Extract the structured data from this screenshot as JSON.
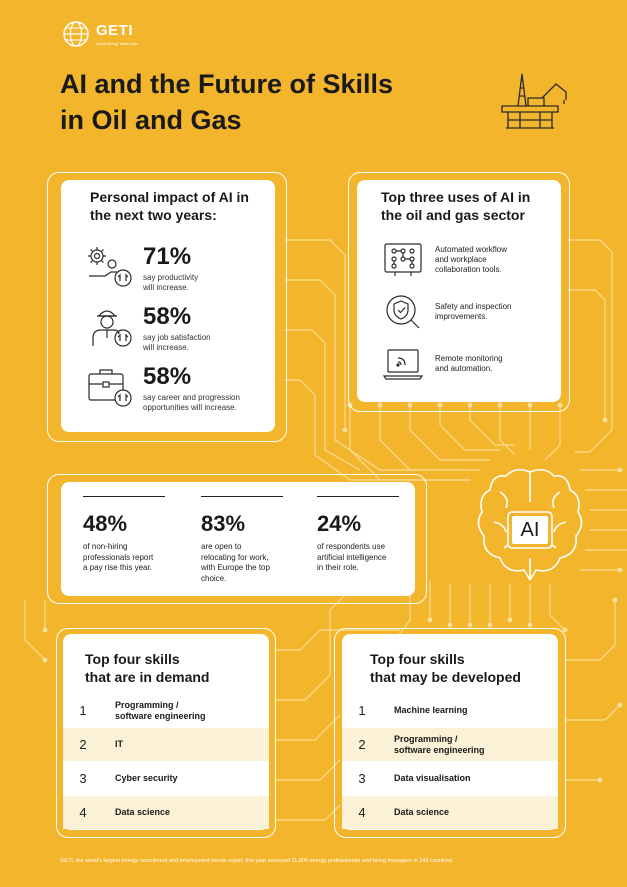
{
  "brand": {
    "logo_text": "GETI",
    "logo_tagline": "Global Energy Talent Index"
  },
  "title": {
    "line1": "AI and the Future of Skills",
    "line2": "in Oil and Gas"
  },
  "personal_impact": {
    "heading_line1": "Personal impact of AI in",
    "heading_line2": "the next two years:",
    "items": [
      {
        "icon": "gear-hand-icon",
        "percent": "71%",
        "desc_line1": "say productivity",
        "desc_line2": "will increase."
      },
      {
        "icon": "worker-icon",
        "percent": "58%",
        "desc_line1": "say job satisfaction",
        "desc_line2": "will increase."
      },
      {
        "icon": "briefcase-icon",
        "percent": "58%",
        "desc_line1": "say career and progression",
        "desc_line2": "opportunities will increase."
      }
    ]
  },
  "top_uses": {
    "heading_line1": "Top three uses of AI in",
    "heading_line2": "the oil and gas sector",
    "items": [
      {
        "icon": "workflow-board-icon",
        "line1": "Automated workflow",
        "line2": "and workplace",
        "line3": "collaboration tools."
      },
      {
        "icon": "shield-check-icon",
        "line1": "Safety and inspection",
        "line2": "improvements.",
        "line3": ""
      },
      {
        "icon": "laptop-signal-icon",
        "line1": "Remote monitoring",
        "line2": "and automation.",
        "line3": ""
      }
    ]
  },
  "stats": [
    {
      "percent": "48%",
      "lines": [
        "of non-hiring",
        "professionals report",
        "a pay rise this year."
      ]
    },
    {
      "percent": "83%",
      "lines": [
        "are open to",
        "relocating for work,",
        "with Europe the top",
        "choice."
      ]
    },
    {
      "percent": "24%",
      "lines": [
        "of respondents use",
        "artificial intelligence",
        "in their role."
      ]
    }
  ],
  "ai_badge": "AI",
  "skills_demand": {
    "heading_line1": "Top four skills",
    "heading_line2": "that are in demand",
    "items": [
      {
        "num": "1",
        "line1": "Programming /",
        "line2": "software engineering"
      },
      {
        "num": "2",
        "line1": "IT",
        "line2": ""
      },
      {
        "num": "3",
        "line1": "Cyber security",
        "line2": ""
      },
      {
        "num": "4",
        "line1": "Data science",
        "line2": ""
      }
    ]
  },
  "skills_developed": {
    "heading_line1": "Top four skills",
    "heading_line2": "that may be developed",
    "items": [
      {
        "num": "1",
        "line1": "Machine learning",
        "line2": ""
      },
      {
        "num": "2",
        "line1": "Programming /",
        "line2": "software engineering"
      },
      {
        "num": "3",
        "line1": "Data visualisation",
        "line2": ""
      },
      {
        "num": "4",
        "line1": "Data science",
        "line2": ""
      }
    ]
  },
  "footnote": "GETI, the world's largest energy recruitment and employment trends report, this year surveyed 11,800 energy professionals and hiring managers in 149 countries.",
  "colors": {
    "background": "#f2b52c",
    "card": "#ffffff",
    "row_shade": "#fbf1d6",
    "text": "#1a1a1a"
  }
}
